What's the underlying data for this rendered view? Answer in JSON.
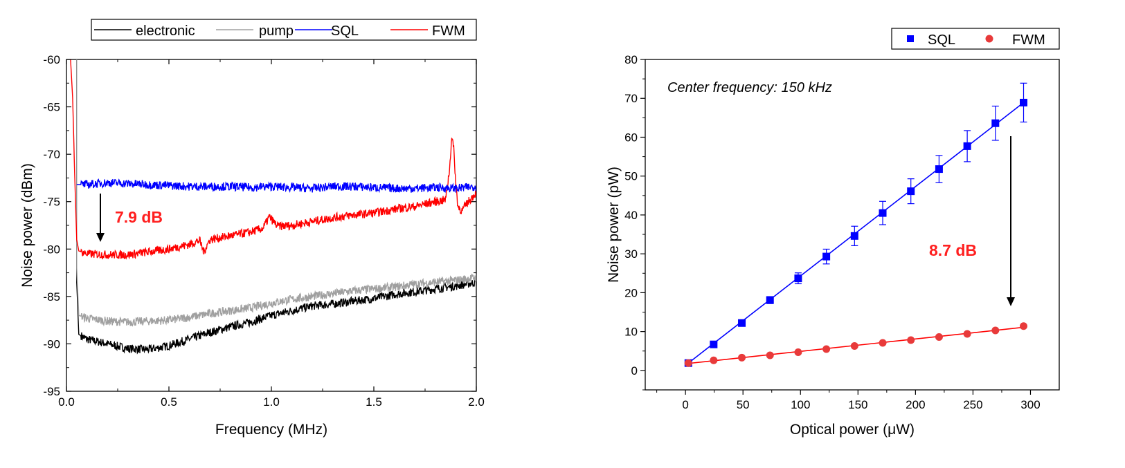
{
  "chart_data": [
    {
      "type": "line",
      "xlabel": "Frequency (MHz)",
      "ylabel": "Noise power (dBm)",
      "xlim": [
        0.0,
        2.0
      ],
      "ylim": [
        -95,
        -60
      ],
      "xticks": [
        0.0,
        0.5,
        1.0,
        1.5,
        2.0
      ],
      "xtick_labels": [
        "0.0",
        "0.5",
        "1.0",
        "1.5",
        "2.0"
      ],
      "yticks": [
        -95,
        -90,
        -85,
        -80,
        -75,
        -70,
        -65,
        -60
      ],
      "ytick_labels": [
        "-95",
        "-90",
        "-85",
        "-80",
        "-75",
        "-70",
        "-65",
        "-60"
      ],
      "legend_position": "top",
      "grid": false,
      "series": [
        {
          "name": "electronic",
          "color": "#000000",
          "x": [
            0.05,
            0.06,
            0.1,
            0.2,
            0.3,
            0.4,
            0.5,
            0.6,
            0.7,
            0.8,
            0.9,
            1.0,
            1.1,
            1.2,
            1.3,
            1.4,
            1.5,
            1.6,
            1.7,
            1.8,
            1.9,
            2.0
          ],
          "values": [
            -83.5,
            -89.0,
            -89.5,
            -90.0,
            -90.5,
            -90.6,
            -90.2,
            -89.5,
            -88.8,
            -88.2,
            -87.7,
            -87.0,
            -86.5,
            -86.0,
            -85.8,
            -85.5,
            -85.2,
            -84.8,
            -84.5,
            -84.2,
            -83.9,
            -83.5
          ]
        },
        {
          "name": "pump",
          "color": "#a0a0a0",
          "x": [
            0.05,
            0.06,
            0.1,
            0.2,
            0.3,
            0.4,
            0.5,
            0.6,
            0.7,
            0.8,
            0.9,
            1.0,
            1.1,
            1.2,
            1.3,
            1.4,
            1.5,
            1.6,
            1.7,
            1.8,
            1.9,
            2.0
          ],
          "values": [
            -82.0,
            -87.0,
            -87.3,
            -87.6,
            -87.7,
            -87.6,
            -87.5,
            -87.2,
            -86.8,
            -86.5,
            -86.2,
            -85.7,
            -85.3,
            -85.0,
            -84.7,
            -84.4,
            -84.2,
            -84.0,
            -83.7,
            -83.5,
            -83.3,
            -83.0
          ]
        },
        {
          "name": "SQL",
          "color": "#0000ff",
          "x": [
            0.05,
            0.1,
            0.2,
            0.3,
            0.4,
            0.5,
            0.6,
            0.7,
            0.8,
            0.9,
            1.0,
            1.1,
            1.2,
            1.3,
            1.4,
            1.5,
            1.6,
            1.7,
            1.8,
            1.9,
            2.0
          ],
          "values": [
            -73.2,
            -73.2,
            -73.0,
            -73.1,
            -73.2,
            -73.3,
            -73.4,
            -73.4,
            -73.4,
            -73.5,
            -73.4,
            -73.5,
            -73.6,
            -73.4,
            -73.4,
            -73.5,
            -73.6,
            -73.6,
            -73.5,
            -73.6,
            -73.4
          ]
        },
        {
          "name": "FWM",
          "color": "#ff0000",
          "x": [
            0.02,
            0.03,
            0.04,
            0.05,
            0.06,
            0.1,
            0.2,
            0.3,
            0.4,
            0.5,
            0.6,
            0.65,
            0.67,
            0.7,
            0.8,
            0.9,
            0.96,
            0.99,
            1.03,
            1.1,
            1.2,
            1.3,
            1.4,
            1.5,
            1.6,
            1.7,
            1.8,
            1.85,
            1.87,
            1.88,
            1.89,
            1.9,
            1.91,
            1.93,
            1.95,
            2.0
          ],
          "values": [
            -60.0,
            -64.0,
            -72.0,
            -79.0,
            -80.2,
            -80.5,
            -80.6,
            -80.6,
            -80.3,
            -80.0,
            -79.5,
            -79.1,
            -80.3,
            -79.0,
            -78.6,
            -78.2,
            -77.8,
            -76.6,
            -77.6,
            -77.5,
            -77.1,
            -76.7,
            -76.4,
            -76.2,
            -75.8,
            -75.5,
            -75.0,
            -74.8,
            -71.5,
            -68.0,
            -69.5,
            -73.0,
            -75.5,
            -76.0,
            -75.3,
            -74.0
          ]
        }
      ],
      "annotations": [
        {
          "text": "7.9 dB",
          "color": "#ff2020"
        }
      ]
    },
    {
      "type": "scatter",
      "xlabel": "Optical power (μW)",
      "ylabel": "Noise power (pW)",
      "xlim": [
        -35,
        325
      ],
      "ylim": [
        -5,
        80
      ],
      "xticks": [
        0,
        50,
        100,
        150,
        200,
        250,
        300
      ],
      "xtick_labels": [
        "0",
        "50",
        "100",
        "150",
        "200",
        "250",
        "300"
      ],
      "yticks": [
        0,
        10,
        20,
        30,
        40,
        50,
        60,
        70,
        80
      ],
      "ytick_labels": [
        "0",
        "10",
        "20",
        "30",
        "40",
        "50",
        "60",
        "70",
        "80"
      ],
      "legend_position": "top-right",
      "grid": false,
      "note": "Center frequency: 150 kHz",
      "series": [
        {
          "name": "SQL",
          "marker": "square",
          "color": "#0000ff",
          "x": [
            2.5,
            24.5,
            49,
            73.5,
            98,
            122.5,
            147,
            171.5,
            196,
            220.5,
            245,
            269.5,
            294
          ],
          "values": [
            1.9,
            6.7,
            12.2,
            18.1,
            23.7,
            29.3,
            34.6,
            40.5,
            46.1,
            51.8,
            57.7,
            63.6,
            68.9
          ],
          "errors": [
            0.2,
            0.4,
            0.6,
            0.9,
            1.4,
            1.9,
            2.5,
            3.0,
            3.2,
            3.5,
            4.0,
            4.4,
            5.0
          ],
          "fit": [
            [
              2.5,
              1.9
            ],
            [
              294,
              68.9
            ]
          ]
        },
        {
          "name": "FWM",
          "marker": "circle",
          "color": "#ff0000",
          "x": [
            2.5,
            24.5,
            49,
            73.5,
            98,
            122.5,
            147,
            171.5,
            196,
            220.5,
            245,
            269.5,
            294
          ],
          "values": [
            1.9,
            2.6,
            3.3,
            3.9,
            4.7,
            5.5,
            6.3,
            7.1,
            7.8,
            8.6,
            9.4,
            10.3,
            11.4
          ],
          "fit": [
            [
              2.5,
              1.8
            ],
            [
              294,
              11.1
            ]
          ]
        }
      ],
      "annotations": [
        {
          "text": "8.7 dB",
          "color": "#ff2020"
        }
      ]
    }
  ]
}
